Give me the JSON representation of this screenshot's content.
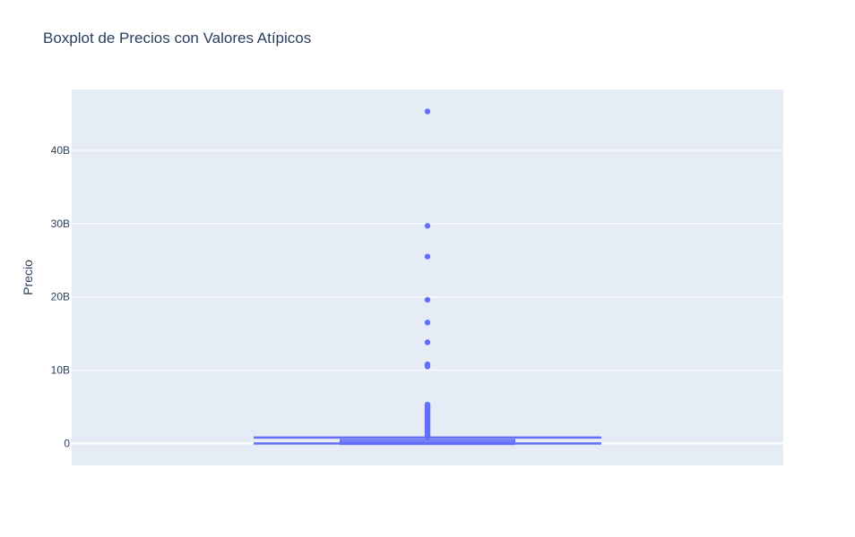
{
  "chart_data": {
    "type": "box",
    "title": "Boxplot de Precios con Valores Atípicos",
    "xlabel": "",
    "ylabel": "Precio",
    "ylim": [
      -3000000000,
      48300000000
    ],
    "y_ticks": [
      {
        "value": 0,
        "label": "0"
      },
      {
        "value": 10000000000,
        "label": "10B"
      },
      {
        "value": 20000000000,
        "label": "20B"
      },
      {
        "value": 30000000000,
        "label": "30B"
      },
      {
        "value": 40000000000,
        "label": "40B"
      }
    ],
    "grid": true,
    "legend": "none",
    "color": "#636efa",
    "plot_bg": "#e5ecf6",
    "box": {
      "lower_fence": 0,
      "q1": 30000000,
      "median": 150000000,
      "q3": 350000000,
      "upper_fence": 800000000
    },
    "outliers": [
      45300000000,
      29700000000,
      25500000000,
      19600000000,
      16500000000,
      13800000000,
      10800000000,
      10500000000,
      5300000000,
      5150000000,
      5000000000,
      4850000000,
      4700000000,
      4550000000,
      4400000000,
      4250000000,
      4100000000,
      3950000000,
      3800000000,
      3650000000,
      3500000000,
      3350000000,
      3200000000,
      3050000000,
      2900000000,
      2750000000,
      2600000000,
      2450000000,
      2300000000,
      2150000000,
      2000000000,
      1850000000,
      1700000000,
      1550000000,
      1400000000,
      1250000000,
      1100000000,
      950000000
    ]
  }
}
